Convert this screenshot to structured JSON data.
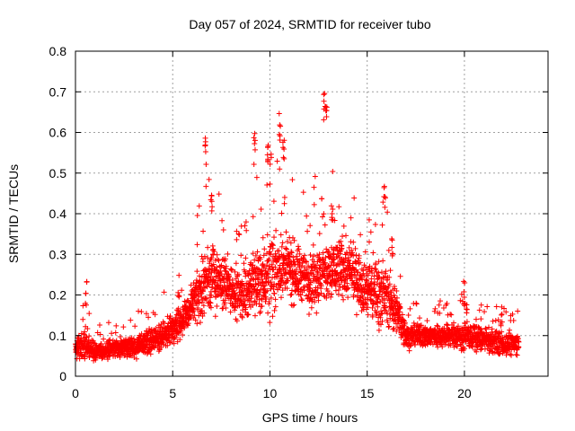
{
  "chart_data": {
    "type": "scatter",
    "title": "Day 057 of 2024, SRMTID for receiver tubo",
    "xlabel": "GPS time / hours",
    "ylabel": "SRMTID / TECUs",
    "xlim": [
      0,
      24.3
    ],
    "ylim": [
      0,
      0.8
    ],
    "xticks": [
      0,
      5,
      10,
      15,
      20
    ],
    "xtick_labels": [
      "0",
      "5",
      "10",
      "15",
      "20"
    ],
    "yticks": [
      0,
      0.1,
      0.2,
      0.3,
      0.4,
      0.5,
      0.6,
      0.7,
      0.8
    ],
    "ytick_labels": [
      "0",
      "0.1",
      "0.2",
      "0.3",
      "0.4",
      "0.5",
      "0.6",
      "0.7",
      "0.8"
    ],
    "grid": true,
    "marker": "+",
    "color": "#ff0000",
    "legend": "none",
    "series": [
      {
        "name": "SRMTID",
        "envelope": {
          "x": [
            0,
            0.5,
            1,
            2,
            3,
            4,
            4.5,
            5,
            5.5,
            6,
            6.5,
            7,
            7.5,
            8,
            8.5,
            9,
            9.5,
            10,
            10.5,
            11,
            11.5,
            12,
            12.5,
            13,
            13.5,
            14,
            14.5,
            15,
            15.5,
            16,
            16.5,
            17,
            18,
            19,
            20,
            21,
            22,
            22.8
          ],
          "median": [
            0.07,
            0.08,
            0.06,
            0.07,
            0.07,
            0.09,
            0.1,
            0.12,
            0.14,
            0.17,
            0.22,
            0.25,
            0.23,
            0.22,
            0.2,
            0.22,
            0.24,
            0.25,
            0.27,
            0.26,
            0.25,
            0.24,
            0.25,
            0.25,
            0.27,
            0.26,
            0.24,
            0.22,
            0.21,
            0.2,
            0.16,
            0.1,
            0.1,
            0.1,
            0.1,
            0.09,
            0.08,
            0.08
          ],
          "spread": [
            0.03,
            0.06,
            0.03,
            0.03,
            0.04,
            0.04,
            0.05,
            0.05,
            0.06,
            0.08,
            0.12,
            0.12,
            0.1,
            0.09,
            0.08,
            0.1,
            0.13,
            0.14,
            0.12,
            0.11,
            0.1,
            0.1,
            0.12,
            0.12,
            0.11,
            0.1,
            0.1,
            0.1,
            0.12,
            0.1,
            0.08,
            0.04,
            0.04,
            0.04,
            0.05,
            0.04,
            0.04,
            0.04
          ]
        },
        "count": 3200,
        "peaks": [
          [
            0.55,
            0.24
          ],
          [
            5.3,
            0.23
          ],
          [
            6.7,
            0.59
          ],
          [
            7.0,
            0.48
          ],
          [
            9.2,
            0.6
          ],
          [
            9.9,
            0.57
          ],
          [
            10.5,
            0.66
          ],
          [
            10.7,
            0.59
          ],
          [
            12.8,
            0.7
          ],
          [
            12.9,
            0.67
          ],
          [
            13.2,
            0.43
          ],
          [
            15.9,
            0.47
          ],
          [
            16.3,
            0.37
          ],
          [
            20.0,
            0.24
          ],
          [
            21.9,
            0.19
          ]
        ]
      }
    ]
  }
}
